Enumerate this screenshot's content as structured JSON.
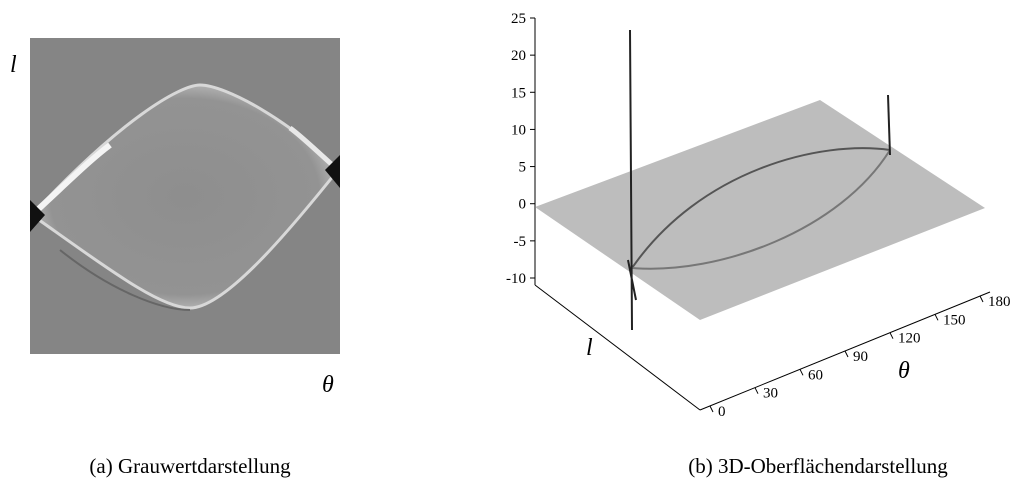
{
  "figure_a": {
    "y_label": "l",
    "x_label": "θ",
    "caption": "(a) Grauwertdarstellung"
  },
  "figure_b": {
    "z_ticks": [
      25,
      20,
      15,
      10,
      5,
      0,
      -5,
      -10
    ],
    "theta_ticks": [
      0,
      30,
      60,
      90,
      120,
      150,
      180
    ],
    "l_label": "l",
    "theta_label": "θ",
    "caption": "(b) 3D-Oberflächendarstellung"
  }
}
